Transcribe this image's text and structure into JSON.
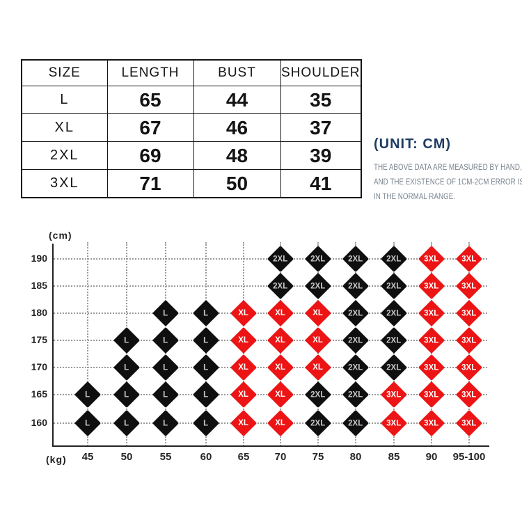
{
  "table": {
    "headers": [
      "SIZE",
      "LENGTH",
      "BUST",
      "SHOULDER"
    ],
    "rows": [
      [
        "L",
        "65",
        "44",
        "35"
      ],
      [
        "XL",
        "67",
        "46",
        "37"
      ],
      [
        "2XL",
        "69",
        "48",
        "39"
      ],
      [
        "3XL",
        "71",
        "50",
        "41"
      ]
    ]
  },
  "note": {
    "unit": "(UNIT:  CM)",
    "lines": [
      "THE ABOVE DATA ARE MEASURED BY HAND,",
      "AND THE EXISTENCE OF 1CM-2CM ERROR IS",
      "IN THE NORMAL RANGE."
    ]
  },
  "chart_data": {
    "type": "scatter",
    "title": "",
    "x_axis_unit": "(kg)",
    "y_axis_unit": "(cm)",
    "x_ticks": [
      "45",
      "50",
      "55",
      "60",
      "65",
      "70",
      "75",
      "80",
      "85",
      "90",
      "95-100"
    ],
    "y_ticks": [
      "190",
      "185",
      "180",
      "175",
      "170",
      "165",
      "160"
    ],
    "grid": "dotted",
    "colors": {
      "black_diamond": "#0f0f0f",
      "red_diamond": "#ec1414"
    },
    "point_format": [
      "height_cm",
      "weight_kg",
      "size_label",
      "color"
    ],
    "points": [
      [
        190,
        "70",
        "2XL",
        "black"
      ],
      [
        190,
        "75",
        "2XL",
        "black"
      ],
      [
        190,
        "80",
        "2XL",
        "black"
      ],
      [
        190,
        "85",
        "2XL",
        "black"
      ],
      [
        190,
        "90",
        "3XL",
        "red"
      ],
      [
        190,
        "95-100",
        "3XL",
        "red"
      ],
      [
        185,
        "70",
        "2XL",
        "black"
      ],
      [
        185,
        "75",
        "2XL",
        "black"
      ],
      [
        185,
        "80",
        "2XL",
        "black"
      ],
      [
        185,
        "85",
        "2XL",
        "black"
      ],
      [
        185,
        "90",
        "3XL",
        "red"
      ],
      [
        185,
        "95-100",
        "3XL",
        "red"
      ],
      [
        180,
        "55",
        "L",
        "black"
      ],
      [
        180,
        "60",
        "L",
        "black"
      ],
      [
        180,
        "65",
        "XL",
        "red"
      ],
      [
        180,
        "70",
        "XL",
        "red"
      ],
      [
        180,
        "75",
        "XL",
        "red"
      ],
      [
        180,
        "80",
        "2XL",
        "black"
      ],
      [
        180,
        "85",
        "2XL",
        "black"
      ],
      [
        180,
        "90",
        "3XL",
        "red"
      ],
      [
        180,
        "95-100",
        "3XL",
        "red"
      ],
      [
        175,
        "50",
        "L",
        "black"
      ],
      [
        175,
        "55",
        "L",
        "black"
      ],
      [
        175,
        "60",
        "L",
        "black"
      ],
      [
        175,
        "65",
        "XL",
        "red"
      ],
      [
        175,
        "70",
        "XL",
        "red"
      ],
      [
        175,
        "75",
        "XL",
        "red"
      ],
      [
        175,
        "80",
        "2XL",
        "black"
      ],
      [
        175,
        "85",
        "2XL",
        "black"
      ],
      [
        175,
        "90",
        "3XL",
        "red"
      ],
      [
        175,
        "95-100",
        "3XL",
        "red"
      ],
      [
        170,
        "50",
        "L",
        "black"
      ],
      [
        170,
        "55",
        "L",
        "black"
      ],
      [
        170,
        "60",
        "L",
        "black"
      ],
      [
        170,
        "65",
        "XL",
        "red"
      ],
      [
        170,
        "70",
        "XL",
        "red"
      ],
      [
        170,
        "75",
        "XL",
        "red"
      ],
      [
        170,
        "80",
        "2XL",
        "black"
      ],
      [
        170,
        "85",
        "2XL",
        "black"
      ],
      [
        170,
        "90",
        "3XL",
        "red"
      ],
      [
        170,
        "95-100",
        "3XL",
        "red"
      ],
      [
        165,
        "45",
        "L",
        "black"
      ],
      [
        165,
        "50",
        "L",
        "black"
      ],
      [
        165,
        "55",
        "L",
        "black"
      ],
      [
        165,
        "60",
        "L",
        "black"
      ],
      [
        165,
        "65",
        "XL",
        "red"
      ],
      [
        165,
        "70",
        "XL",
        "red"
      ],
      [
        165,
        "75",
        "2XL",
        "black"
      ],
      [
        165,
        "80",
        "2XL",
        "black"
      ],
      [
        165,
        "85",
        "3XL",
        "red"
      ],
      [
        165,
        "90",
        "3XL",
        "red"
      ],
      [
        165,
        "95-100",
        "3XL",
        "red"
      ],
      [
        160,
        "45",
        "L",
        "black"
      ],
      [
        160,
        "50",
        "L",
        "black"
      ],
      [
        160,
        "55",
        "L",
        "black"
      ],
      [
        160,
        "60",
        "L",
        "black"
      ],
      [
        160,
        "65",
        "XL",
        "red"
      ],
      [
        160,
        "70",
        "XL",
        "red"
      ],
      [
        160,
        "75",
        "2XL",
        "black"
      ],
      [
        160,
        "80",
        "2XL",
        "black"
      ],
      [
        160,
        "85",
        "3XL",
        "red"
      ],
      [
        160,
        "90",
        "3XL",
        "red"
      ],
      [
        160,
        "95-100",
        "3XL",
        "red"
      ]
    ]
  }
}
